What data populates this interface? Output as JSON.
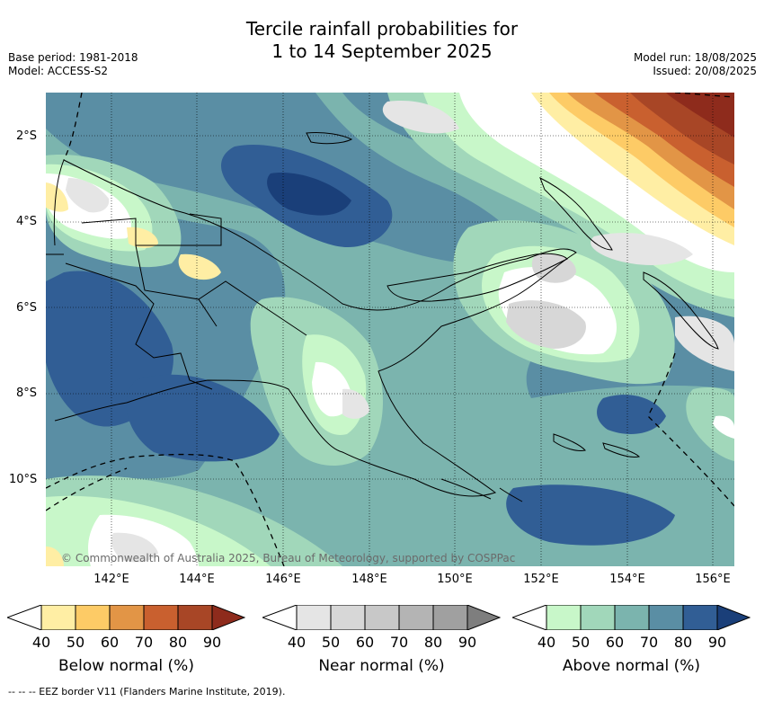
{
  "title": {
    "line1": "Tercile rainfall probabilities for",
    "line2": "1 to 14 September 2025"
  },
  "meta": {
    "base_period": "Base period: 1981-2018",
    "model": "Model: ACCESS-S2",
    "model_run": "Model run: 18/08/2025",
    "issued": "Issued: 20/08/2025"
  },
  "map": {
    "lat_labels": [
      "2°S",
      "4°S",
      "6°S",
      "8°S",
      "10°S"
    ],
    "lon_labels": [
      "142°E",
      "144°E",
      "146°E",
      "148°E",
      "150°E",
      "152°E",
      "154°E",
      "156°E"
    ],
    "copyright": "© Commonwealth of Australia 2025, Bureau of Meteorology, supported by COSPPac"
  },
  "colorbars": [
    {
      "title": "Below normal (%)",
      "ticks": [
        "40",
        "50",
        "60",
        "70",
        "80",
        "90"
      ],
      "colors": [
        "#ffffff",
        "#ffeea4",
        "#fdcb66",
        "#e29546",
        "#c9602f",
        "#a84626",
        "#8e2b1c"
      ]
    },
    {
      "title": "Near normal (%)",
      "ticks": [
        "40",
        "50",
        "60",
        "70",
        "80",
        "90"
      ],
      "colors": [
        "#ffffff",
        "#e5e5e5",
        "#d7d7d7",
        "#c8c8c8",
        "#b4b4b4",
        "#a0a0a0",
        "#7e7e7e"
      ]
    },
    {
      "title": "Above normal (%)",
      "ticks": [
        "40",
        "50",
        "60",
        "70",
        "80",
        "90"
      ],
      "colors": [
        "#ffffff",
        "#c8f7c9",
        "#a1d7ba",
        "#7bb4ae",
        "#5a8ea4",
        "#315e95",
        "#1a3f79"
      ]
    }
  ],
  "footer": "--  --  -- EEZ border V11 (Flanders Marine Institute, 2019)."
}
